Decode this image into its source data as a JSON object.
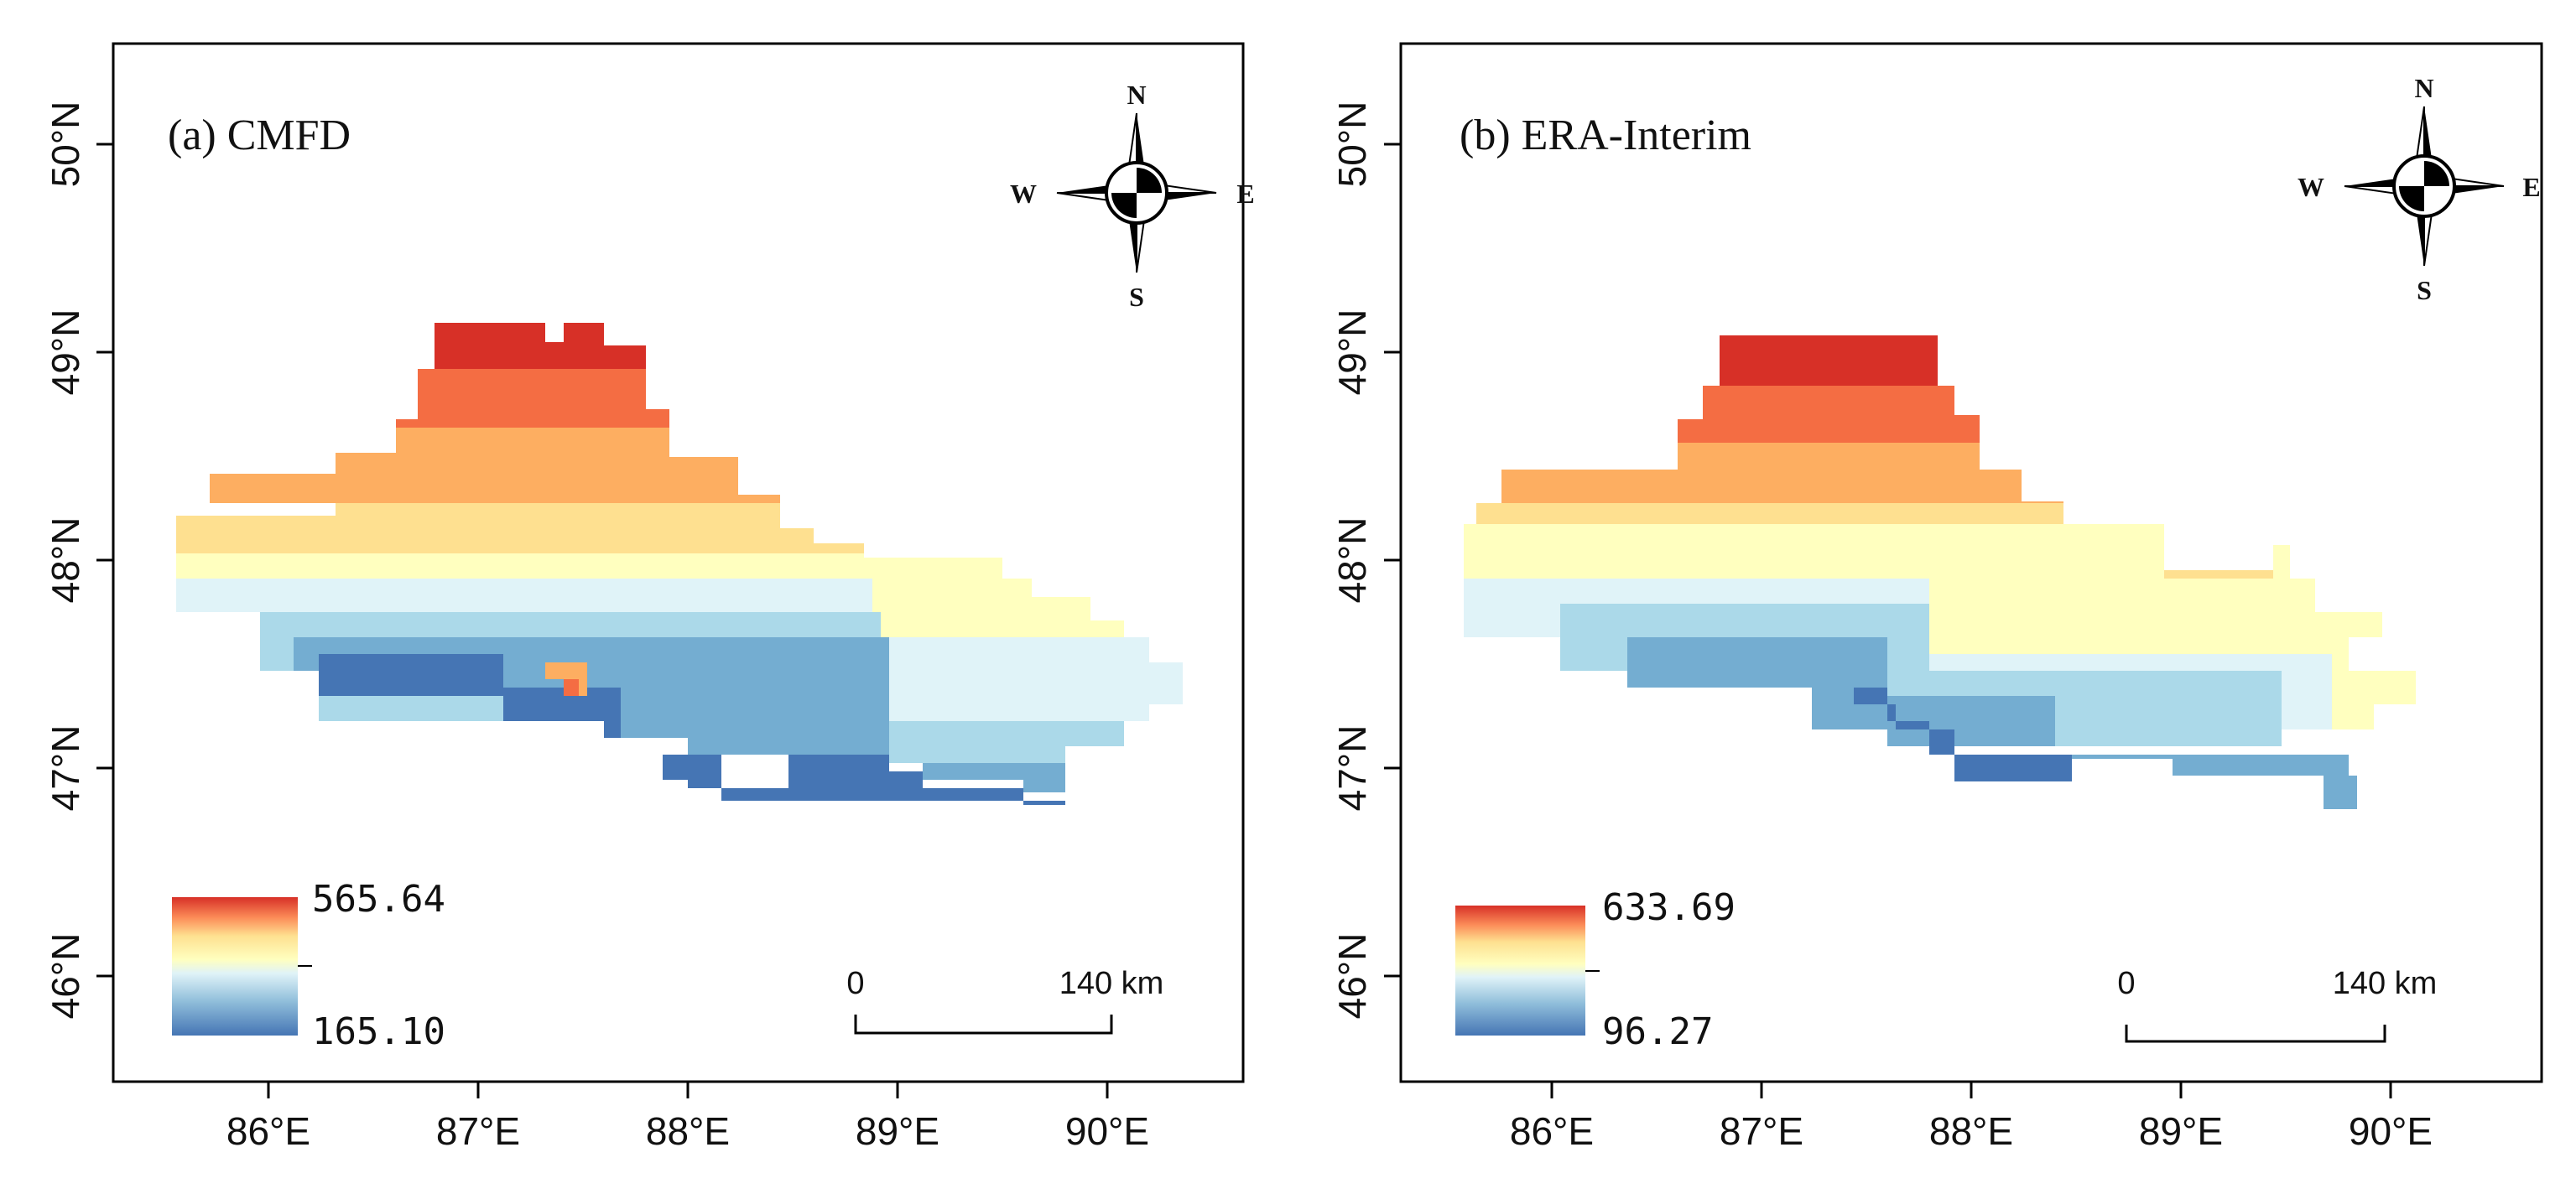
{
  "panels": [
    {
      "id": "a",
      "title": "(a) CMFD",
      "x_ticks": [
        "86°E",
        "87°E",
        "88°E",
        "89°E",
        "90°E"
      ],
      "y_ticks": [
        "50°N",
        "49°N",
        "48°N",
        "47°N",
        "46°N"
      ],
      "legend": {
        "max": "565.64",
        "min": "165.10"
      },
      "scale_bar": {
        "start": "0",
        "end": "140 km"
      },
      "compass": {
        "n": "N",
        "s": "S",
        "e": "E",
        "w": "W"
      }
    },
    {
      "id": "b",
      "title": "(b) ERA-Interim",
      "x_ticks": [
        "86°E",
        "87°E",
        "88°E",
        "89°E",
        "90°E"
      ],
      "y_ticks": [
        "50°N",
        "49°N",
        "48°N",
        "47°N",
        "46°N"
      ],
      "legend": {
        "max": "633.69",
        "min": "96.27"
      },
      "scale_bar": {
        "start": "0",
        "end": "140 km"
      },
      "compass": {
        "n": "N",
        "s": "S",
        "e": "E",
        "w": "W"
      }
    }
  ],
  "colors": {
    "ramp": [
      "#4575b4",
      "#91bfdb",
      "#e0f3f8",
      "#ffffbf",
      "#fee090",
      "#fc8d59",
      "#d73027"
    ]
  }
}
